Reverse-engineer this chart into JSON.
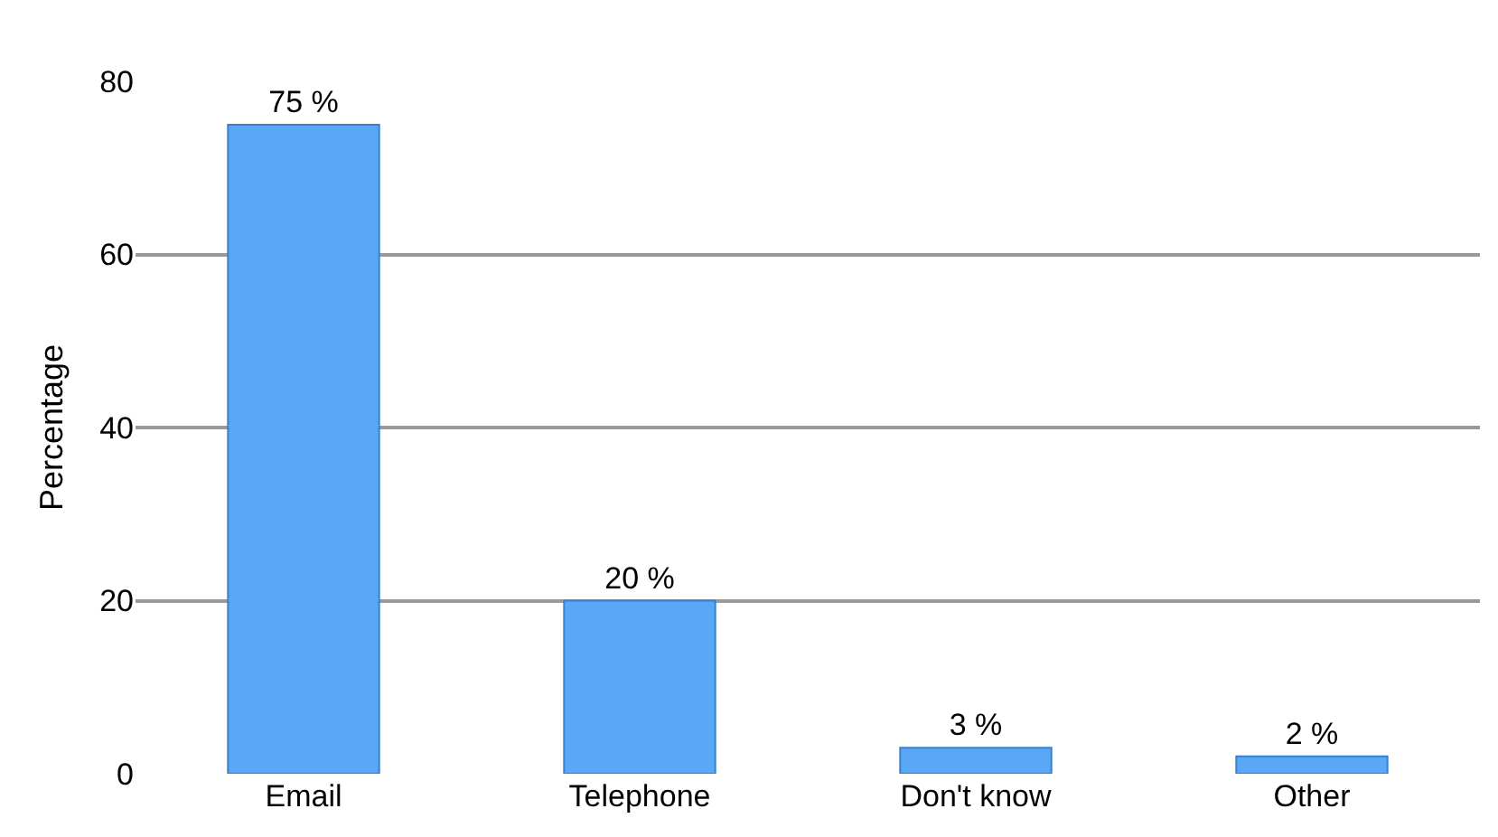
{
  "chart_data": {
    "type": "bar",
    "ylabel": "Percentage",
    "categories": [
      "Email",
      "Telephone",
      "Don't know",
      "Other"
    ],
    "values": [
      75,
      20,
      3,
      2
    ],
    "value_labels": [
      "75 %",
      "20 %",
      "3 %",
      "2 %"
    ],
    "color": "#5aa8f5",
    "ylim": [
      0,
      80
    ],
    "yticks": [
      0,
      20,
      40,
      60,
      80
    ],
    "grid": "y",
    "legend": false
  }
}
